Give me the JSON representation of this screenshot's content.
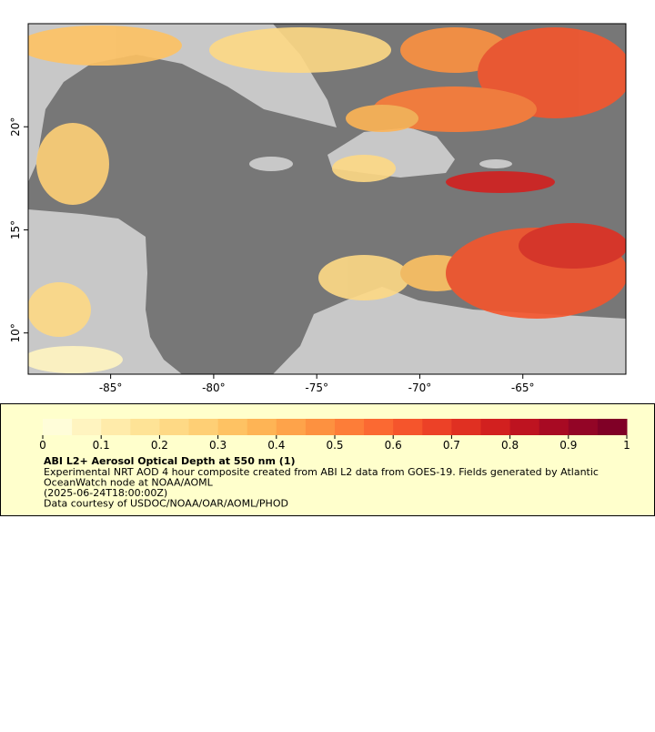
{
  "chart_data": {
    "type": "map",
    "xlim": [
      -89,
      -60
    ],
    "ylim": [
      8,
      25
    ],
    "xticks": [
      {
        "value": -85,
        "label": "-85°"
      },
      {
        "value": -80,
        "label": "-80°"
      },
      {
        "value": -75,
        "label": "-75°"
      },
      {
        "value": -70,
        "label": "-70°"
      },
      {
        "value": -65,
        "label": "-65°"
      }
    ],
    "yticks": [
      {
        "value": 10,
        "label": "10°"
      },
      {
        "value": 15,
        "label": "15°"
      },
      {
        "value": 20,
        "label": "20°"
      }
    ],
    "colorbar": {
      "lim": [
        0,
        1
      ],
      "ticks": [
        0,
        0.1,
        0.2,
        0.3,
        0.4,
        0.5,
        0.6,
        0.7,
        0.8,
        0.9,
        1
      ],
      "colors": [
        "#fffdd9",
        "#fff4c0",
        "#ffebaa",
        "#fee396",
        "#fed985",
        "#fecf75",
        "#fec263",
        "#feb455",
        "#fea34a",
        "#fd9140",
        "#fd7d38",
        "#fb6932",
        "#f5552c",
        "#ec4127",
        "#e03022",
        "#d2201f",
        "#be1320",
        "#a80a23",
        "#930526",
        "#800026"
      ]
    },
    "title": "ABI L2+ Aerosol Optical Depth at 550 nm (1)",
    "description": [
      "Experimental NRT AOD 4 hour composite created from ABI L2 data from GOES-19. Fields generated by Atlantic",
      "OceanWatch node at NOAA/AOML",
      "(2025-06-24T18:00:00Z)",
      "Data courtesy of USDOC/NOAA/OAR/AOML/PHOD"
    ]
  }
}
